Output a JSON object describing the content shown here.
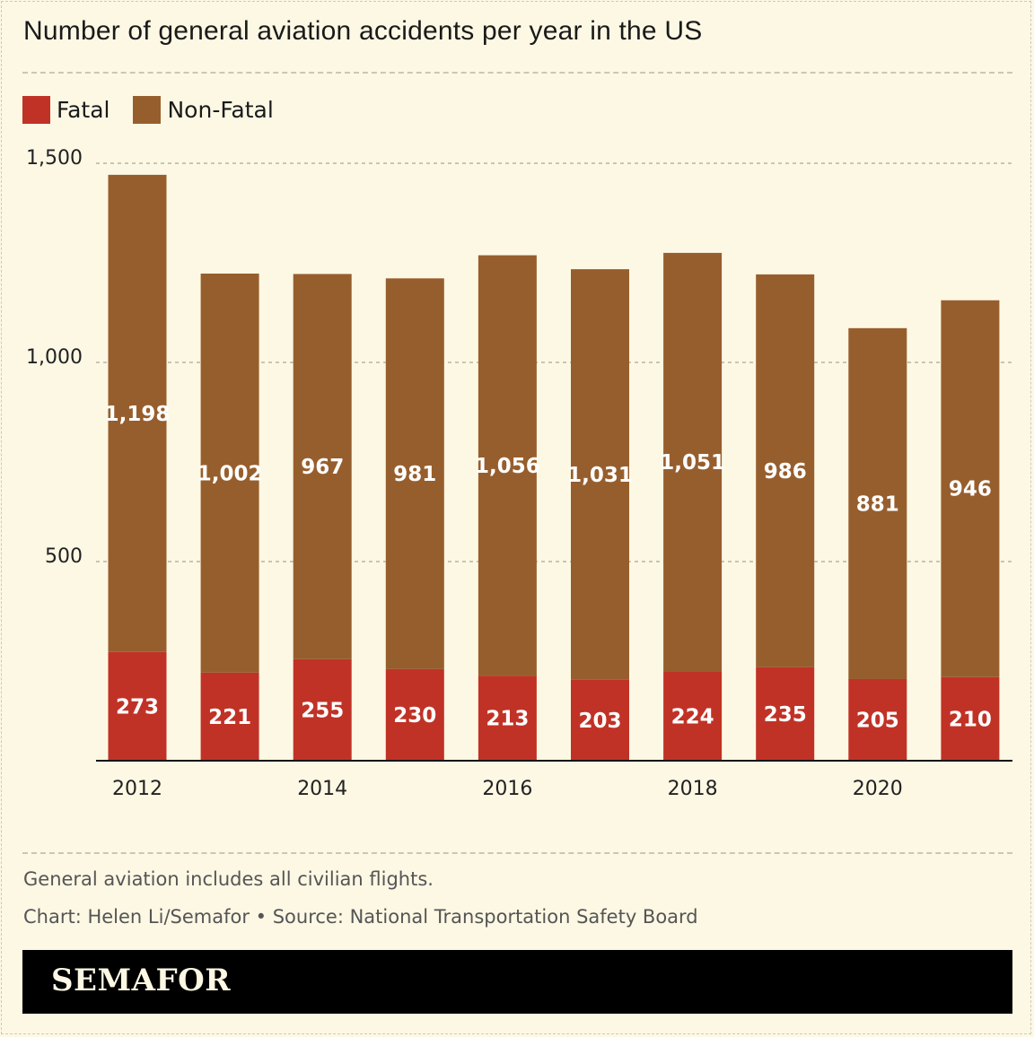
{
  "title": "Number of general aviation accidents per year in the US",
  "legend": [
    {
      "label": "Fatal",
      "color": "#c13226"
    },
    {
      "label": "Non-Fatal",
      "color": "#975e2d"
    }
  ],
  "chart_data": {
    "type": "bar",
    "stacked": true,
    "title": "Number of general aviation accidents per year in the US",
    "categories": [
      "2012",
      "2013",
      "2014",
      "2015",
      "2016",
      "2017",
      "2018",
      "2019",
      "2020",
      "2021"
    ],
    "x_tick_labels": [
      "2012",
      "2014",
      "2016",
      "2018",
      "2020"
    ],
    "series": [
      {
        "name": "Fatal",
        "color": "#c13226",
        "values": [
          273,
          221,
          255,
          230,
          213,
          203,
          224,
          235,
          205,
          210
        ],
        "labels": [
          "273",
          "221",
          "255",
          "230",
          "213",
          "203",
          "224",
          "235",
          "205",
          "210"
        ]
      },
      {
        "name": "Non-Fatal",
        "color": "#975e2d",
        "values": [
          1198,
          1002,
          967,
          981,
          1056,
          1031,
          1051,
          986,
          881,
          946
        ],
        "labels": [
          "1,198",
          "1,002",
          "967",
          "981",
          "1,056",
          "1,031",
          "1,051",
          "986",
          "881",
          "946"
        ]
      }
    ],
    "y_ticks": [
      500,
      1000,
      1500
    ],
    "y_tick_labels": [
      "500",
      "1,000",
      "1,500"
    ],
    "ylim": [
      0,
      1500
    ],
    "grid": true,
    "legend_position": "top-left"
  },
  "notes": {
    "description": "General aviation includes all civilian flights.",
    "credit": "Chart: Helen Li/Semafor • Source: National Transportation Safety Board"
  },
  "brand": "SEMAFOR",
  "colors": {
    "background": "#fdf8e4",
    "fatal": "#c13226",
    "non_fatal": "#975e2d",
    "brand_bar": "#000000"
  }
}
